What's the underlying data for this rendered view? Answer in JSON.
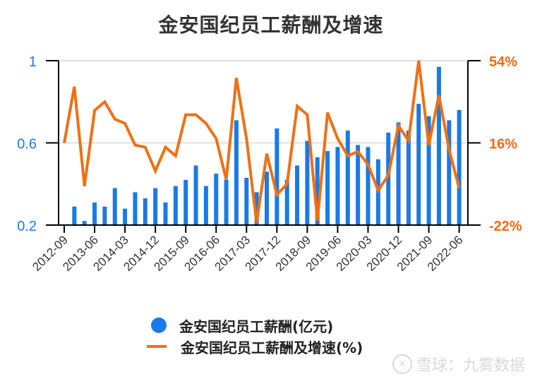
{
  "title": "金安国纪员工薪酬及增速",
  "colors": {
    "bar": "#1a7ae6",
    "line": "#f07014",
    "left_axis_text": "#1a7ae6",
    "right_axis_text": "#f06a14",
    "grid": "#e0e0e0"
  },
  "left_axis": {
    "ticks": [
      "1",
      "0.6",
      "0.2"
    ]
  },
  "right_axis": {
    "ticks": [
      "54%",
      "16%",
      "-22%"
    ]
  },
  "x_axis": {
    "ticks": [
      "2012-09",
      "2013-06",
      "2014-03",
      "2014-12",
      "2015-09",
      "2016-06",
      "2017-03",
      "2017-12",
      "2018-09",
      "2019-06",
      "2020-03",
      "2020-12",
      "2021-09",
      "2022-06"
    ]
  },
  "legend": {
    "bar_label": "金安国纪员工薪酬(亿元)",
    "line_label": "金安国纪员工薪酬及增速(%)"
  },
  "watermark": {
    "text": "雪球：九雾数据"
  },
  "chart_data": {
    "type": "bar+line",
    "title": "金安国纪员工薪酬及增速",
    "categories": [
      "2012-09",
      "2012-12",
      "2013-03",
      "2013-06",
      "2013-09",
      "2013-12",
      "2014-03",
      "2014-06",
      "2014-09",
      "2014-12",
      "2015-03",
      "2015-06",
      "2015-09",
      "2015-12",
      "2016-03",
      "2016-06",
      "2016-09",
      "2016-12",
      "2017-03",
      "2017-06",
      "2017-09",
      "2017-12",
      "2018-03",
      "2018-06",
      "2018-09",
      "2018-12",
      "2019-03",
      "2019-06",
      "2019-09",
      "2019-12",
      "2020-03",
      "2020-06",
      "2020-09",
      "2020-12",
      "2021-03",
      "2021-06",
      "2021-09",
      "2021-12",
      "2022-03",
      "2022-06"
    ],
    "series": [
      {
        "name": "金安国纪员工薪酬(亿元)",
        "type": "bar",
        "axis": "left",
        "values": [
          null,
          0.29,
          0.22,
          0.31,
          0.29,
          0.38,
          0.28,
          0.36,
          0.33,
          0.38,
          0.31,
          0.39,
          0.42,
          0.49,
          0.39,
          0.45,
          0.42,
          0.71,
          0.43,
          0.36,
          0.46,
          0.67,
          0.42,
          0.49,
          0.61,
          0.53,
          0.56,
          0.58,
          0.66,
          0.59,
          0.58,
          0.52,
          0.65,
          0.7,
          0.66,
          0.79,
          0.73,
          0.97,
          0.71,
          0.76
        ]
      },
      {
        "name": "金安国纪员工薪酬及增速(%)",
        "type": "line",
        "axis": "right",
        "values": [
          16,
          42,
          -4,
          31,
          35,
          27,
          25,
          15,
          14,
          3,
          14,
          10,
          29,
          29,
          25,
          18,
          -1,
          46,
          18,
          -21,
          11,
          -8,
          -3,
          33,
          29,
          -20,
          30,
          18,
          10,
          12,
          6,
          -6,
          1,
          24,
          17,
          54,
          15,
          38,
          13,
          -5
        ]
      }
    ],
    "left_axis": {
      "label": "",
      "ylim": [
        0.2,
        1.0
      ],
      "ticks": [
        0.2,
        0.6,
        1.0
      ]
    },
    "right_axis": {
      "label": "",
      "ylim": [
        -22,
        54
      ],
      "ticks": [
        -22,
        16,
        54
      ]
    },
    "legend_position": "bottom",
    "grid": true
  }
}
